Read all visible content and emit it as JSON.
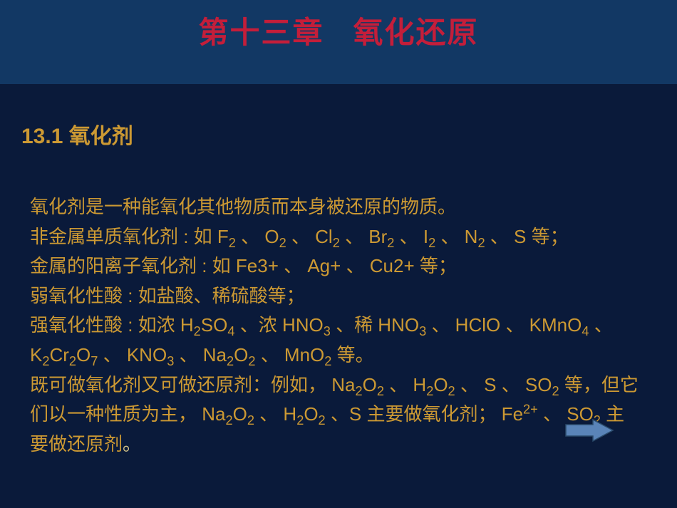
{
  "slide": {
    "background_color": "#0a1a3a",
    "header_color": "#123864",
    "text_color": "#cc9933",
    "title_color": "#c41e3a",
    "title": "第十三章   氧化还原",
    "section_heading": "13.1 氧化剂",
    "body_html": "氧化剂是一种能氧化其他物质而本身被还原的物质。<br>非金属单质氧化剂 : 如 F<sub>2</sub> 、 O<sub>2</sub> 、 Cl<sub>2</sub> 、 Br<sub>2</sub> 、 I<sub>2</sub> 、 N<sub>2</sub> 、 S 等；<br>金属的阳离子氧化剂 : 如 Fe3+ 、 Ag+ 、 Cu2+ 等；<br>弱氧化性酸 : 如盐酸、稀硫酸等；<br>强氧化性酸 : 如浓 H<sub>2</sub>SO<sub>4</sub> 、浓 HNO<sub>3</sub> 、稀 HNO<sub>3</sub> 、 HClO 、 KMnO<sub>4</sub> 、 K<sub>2</sub>Cr<sub>2</sub>O<sub>7</sub> 、 KNO<sub>3</sub> 、 Na<sub>2</sub>O<sub>2</sub> 、 MnO<sub>2</sub> 等。<br>既可做氧化剂又可做还原剂：例如， Na<sub>2</sub>O<sub>2</sub> 、 H<sub>2</sub>O<sub>2</sub> 、 S 、 SO<sub>2</sub> 等，但它们以一种性质为主， Na<sub>2</sub>O<sub>2</sub> 、 H<sub>2</sub>O<sub>2</sub> 、S 主要做氧化剂； Fe<sup>2+</sup> 、 SO<sub>2</sub> 主要做还原剂<span style='color:#d4c488'>。</span>",
    "arrow": {
      "fill": "#5a84b8",
      "stroke": "#2a4a6a"
    }
  }
}
